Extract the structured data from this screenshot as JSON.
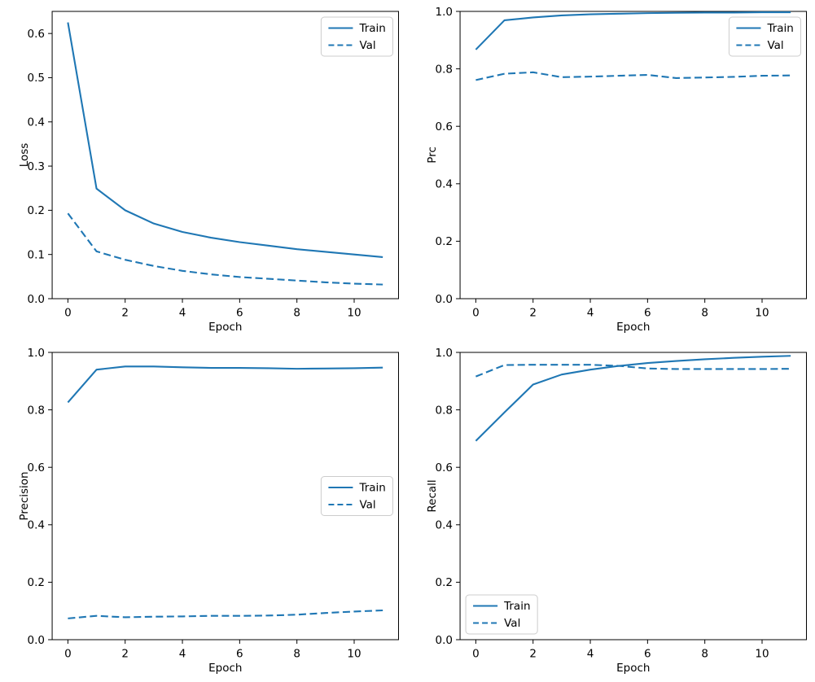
{
  "figure": {
    "background": "#ffffff",
    "line_color": "#1f77b4",
    "text_color": "#000000",
    "spine_color": "#000000",
    "legend_border_color": "#cccccc",
    "legend_background": "#ffffff"
  },
  "chart_data": [
    {
      "id": "loss",
      "type": "line",
      "xlabel": "Epoch",
      "ylabel": "Loss",
      "x": [
        0,
        1,
        2,
        3,
        4,
        5,
        6,
        7,
        8,
        9,
        10,
        11
      ],
      "series": [
        {
          "name": "Train",
          "style": "solid",
          "color": "#1f77b4",
          "values": [
            0.625,
            0.249,
            0.2,
            0.17,
            0.151,
            0.138,
            0.128,
            0.12,
            0.112,
            0.106,
            0.1,
            0.094
          ]
        },
        {
          "name": "Val",
          "style": "dashed",
          "color": "#1f77b4",
          "values": [
            0.193,
            0.107,
            0.088,
            0.074,
            0.063,
            0.055,
            0.049,
            0.045,
            0.041,
            0.037,
            0.034,
            0.032
          ]
        }
      ],
      "xlim": [
        -0.55,
        11.55
      ],
      "ylim": [
        0,
        0.65
      ],
      "xtick_values": [
        0,
        2,
        4,
        6,
        8,
        10
      ],
      "xtick_labels": [
        "0",
        "2",
        "4",
        "6",
        "8",
        "10"
      ],
      "ytick_values": [
        0,
        0.1,
        0.2,
        0.3,
        0.4,
        0.5,
        0.6
      ],
      "ytick_labels": [
        "0.0",
        "0.1",
        "0.2",
        "0.3",
        "0.4",
        "0.5",
        "0.6"
      ],
      "legend": {
        "position": "upper-right",
        "entries": [
          "Train",
          "Val"
        ]
      },
      "grid": false
    },
    {
      "id": "prc",
      "type": "line",
      "xlabel": "Epoch",
      "ylabel": "Prc",
      "x": [
        0,
        1,
        2,
        3,
        4,
        5,
        6,
        7,
        8,
        9,
        10,
        11
      ],
      "series": [
        {
          "name": "Train",
          "style": "solid",
          "color": "#1f77b4",
          "values": [
            0.867,
            0.969,
            0.979,
            0.986,
            0.99,
            0.992,
            0.994,
            0.995,
            0.996,
            0.996,
            0.997,
            0.997
          ]
        },
        {
          "name": "Val",
          "style": "dashed",
          "color": "#1f77b4",
          "values": [
            0.761,
            0.783,
            0.788,
            0.771,
            0.773,
            0.776,
            0.779,
            0.768,
            0.77,
            0.772,
            0.776,
            0.777
          ]
        }
      ],
      "xlim": [
        -0.55,
        11.55
      ],
      "ylim": [
        0,
        1.0
      ],
      "xtick_values": [
        0,
        2,
        4,
        6,
        8,
        10
      ],
      "xtick_labels": [
        "0",
        "2",
        "4",
        "6",
        "8",
        "10"
      ],
      "ytick_values": [
        0,
        0.2,
        0.4,
        0.6,
        0.8,
        1.0
      ],
      "ytick_labels": [
        "0.0",
        "0.2",
        "0.4",
        "0.6",
        "0.8",
        "1.0"
      ],
      "legend": {
        "position": "upper-right",
        "entries": [
          "Train",
          "Val"
        ]
      },
      "grid": false
    },
    {
      "id": "precision",
      "type": "line",
      "xlabel": "Epoch",
      "ylabel": "Precision",
      "x": [
        0,
        1,
        2,
        3,
        4,
        5,
        6,
        7,
        8,
        9,
        10,
        11
      ],
      "series": [
        {
          "name": "Train",
          "style": "solid",
          "color": "#1f77b4",
          "values": [
            0.826,
            0.94,
            0.951,
            0.951,
            0.948,
            0.946,
            0.946,
            0.945,
            0.943,
            0.944,
            0.945,
            0.947
          ]
        },
        {
          "name": "Val",
          "style": "dashed",
          "color": "#1f77b4",
          "values": [
            0.074,
            0.083,
            0.078,
            0.08,
            0.081,
            0.083,
            0.083,
            0.084,
            0.087,
            0.093,
            0.098,
            0.102
          ]
        }
      ],
      "xlim": [
        -0.55,
        11.55
      ],
      "ylim": [
        0,
        1.0
      ],
      "xtick_values": [
        0,
        2,
        4,
        6,
        8,
        10
      ],
      "xtick_labels": [
        "0",
        "2",
        "4",
        "6",
        "8",
        "10"
      ],
      "ytick_values": [
        0,
        0.2,
        0.4,
        0.6,
        0.8,
        1.0
      ],
      "ytick_labels": [
        "0.0",
        "0.2",
        "0.4",
        "0.6",
        "0.8",
        "1.0"
      ],
      "legend": {
        "position": "center-right",
        "entries": [
          "Train",
          "Val"
        ]
      },
      "grid": false
    },
    {
      "id": "recall",
      "type": "line",
      "xlabel": "Epoch",
      "ylabel": "Recall",
      "x": [
        0,
        1,
        2,
        3,
        4,
        5,
        6,
        7,
        8,
        9,
        10,
        11
      ],
      "series": [
        {
          "name": "Train",
          "style": "solid",
          "color": "#1f77b4",
          "values": [
            0.692,
            0.791,
            0.888,
            0.923,
            0.94,
            0.953,
            0.963,
            0.97,
            0.976,
            0.981,
            0.985,
            0.988
          ]
        },
        {
          "name": "Val",
          "style": "dashed",
          "color": "#1f77b4",
          "values": [
            0.916,
            0.956,
            0.957,
            0.957,
            0.957,
            0.953,
            0.944,
            0.942,
            0.942,
            0.942,
            0.942,
            0.943
          ]
        }
      ],
      "xlim": [
        -0.55,
        11.55
      ],
      "ylim": [
        0,
        1.0
      ],
      "xtick_values": [
        0,
        2,
        4,
        6,
        8,
        10
      ],
      "xtick_labels": [
        "0",
        "2",
        "4",
        "6",
        "8",
        "10"
      ],
      "ytick_values": [
        0,
        0.2,
        0.4,
        0.6,
        0.8,
        1.0
      ],
      "ytick_labels": [
        "0.0",
        "0.2",
        "0.4",
        "0.6",
        "0.8",
        "1.0"
      ],
      "legend": {
        "position": "lower-left",
        "entries": [
          "Train",
          "Val"
        ]
      },
      "grid": false
    }
  ]
}
